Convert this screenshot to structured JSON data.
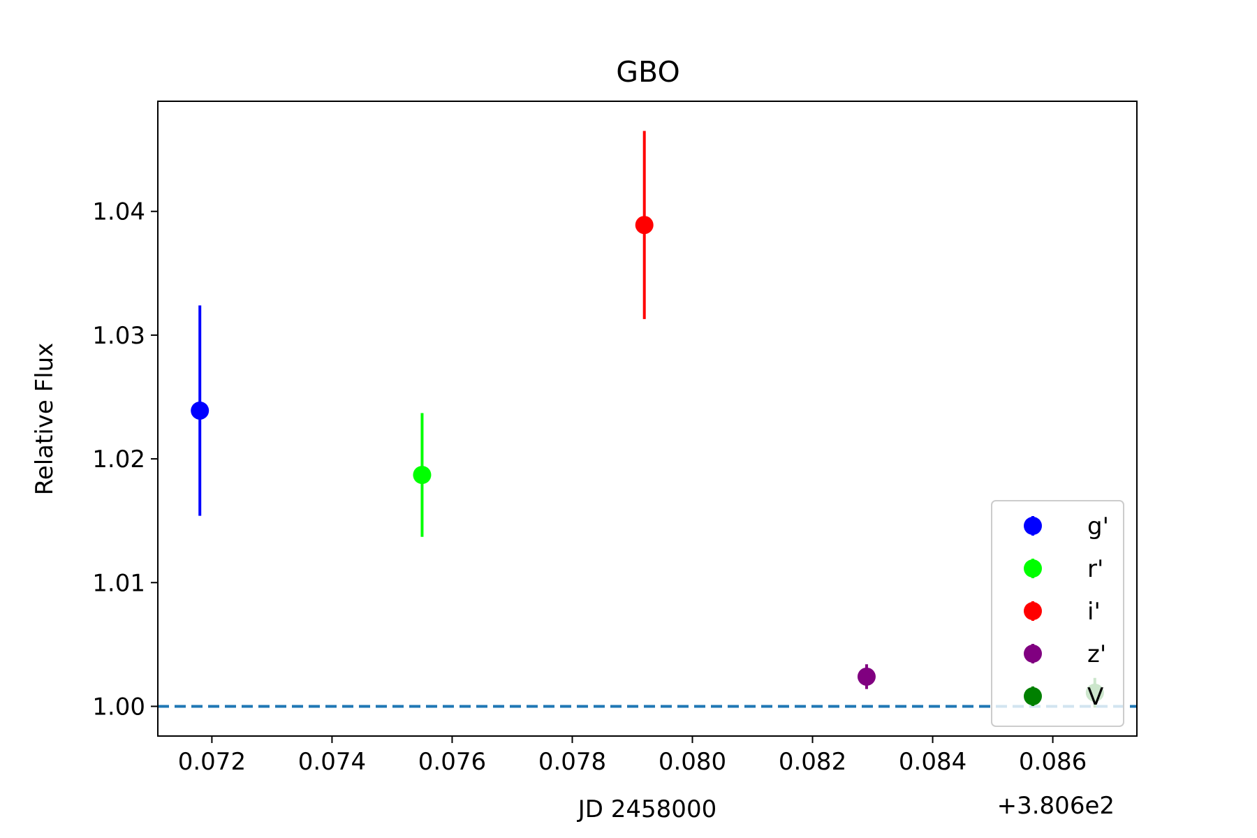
{
  "chart_data": {
    "type": "scatter",
    "title": "GBO",
    "xlabel": "JD 2458000",
    "ylabel": "Relative Flux",
    "x_offset_label": "+3.806e2",
    "xlim": [
      380.6711,
      380.6874
    ],
    "ylim": [
      0.9976,
      1.0489
    ],
    "xticks": [
      380.672,
      380.674,
      380.676,
      380.678,
      380.68,
      380.682,
      380.684,
      380.686
    ],
    "xtick_labels": [
      "0.072",
      "0.074",
      "0.076",
      "0.078",
      "0.080",
      "0.082",
      "0.084",
      "0.086"
    ],
    "yticks": [
      1.0,
      1.01,
      1.02,
      1.03,
      1.04
    ],
    "ytick_labels": [
      "1.00",
      "1.01",
      "1.02",
      "1.03",
      "1.04"
    ],
    "grid": false,
    "legend_position": "lower-right",
    "reference_line": {
      "y": 1.0,
      "style": "dashed",
      "color": "#1f77b4"
    },
    "series": [
      {
        "name": "g'",
        "color": "#0000ff",
        "x": [
          380.6718
        ],
        "y": [
          1.0239
        ],
        "yerr": [
          0.0085
        ]
      },
      {
        "name": "r'",
        "color": "#00ff00",
        "x": [
          380.6755
        ],
        "y": [
          1.0187
        ],
        "yerr": [
          0.005
        ]
      },
      {
        "name": "i'",
        "color": "#ff0000",
        "x": [
          380.6792
        ],
        "y": [
          1.0389
        ],
        "yerr": [
          0.0076
        ]
      },
      {
        "name": "z'",
        "color": "#800080",
        "x": [
          380.6829
        ],
        "y": [
          1.0024
        ],
        "yerr": [
          0.001
        ]
      },
      {
        "name": "V",
        "color": "#008000",
        "x": [
          380.6867
        ],
        "y": [
          1.0011
        ],
        "yerr": [
          0.0012
        ]
      }
    ]
  }
}
